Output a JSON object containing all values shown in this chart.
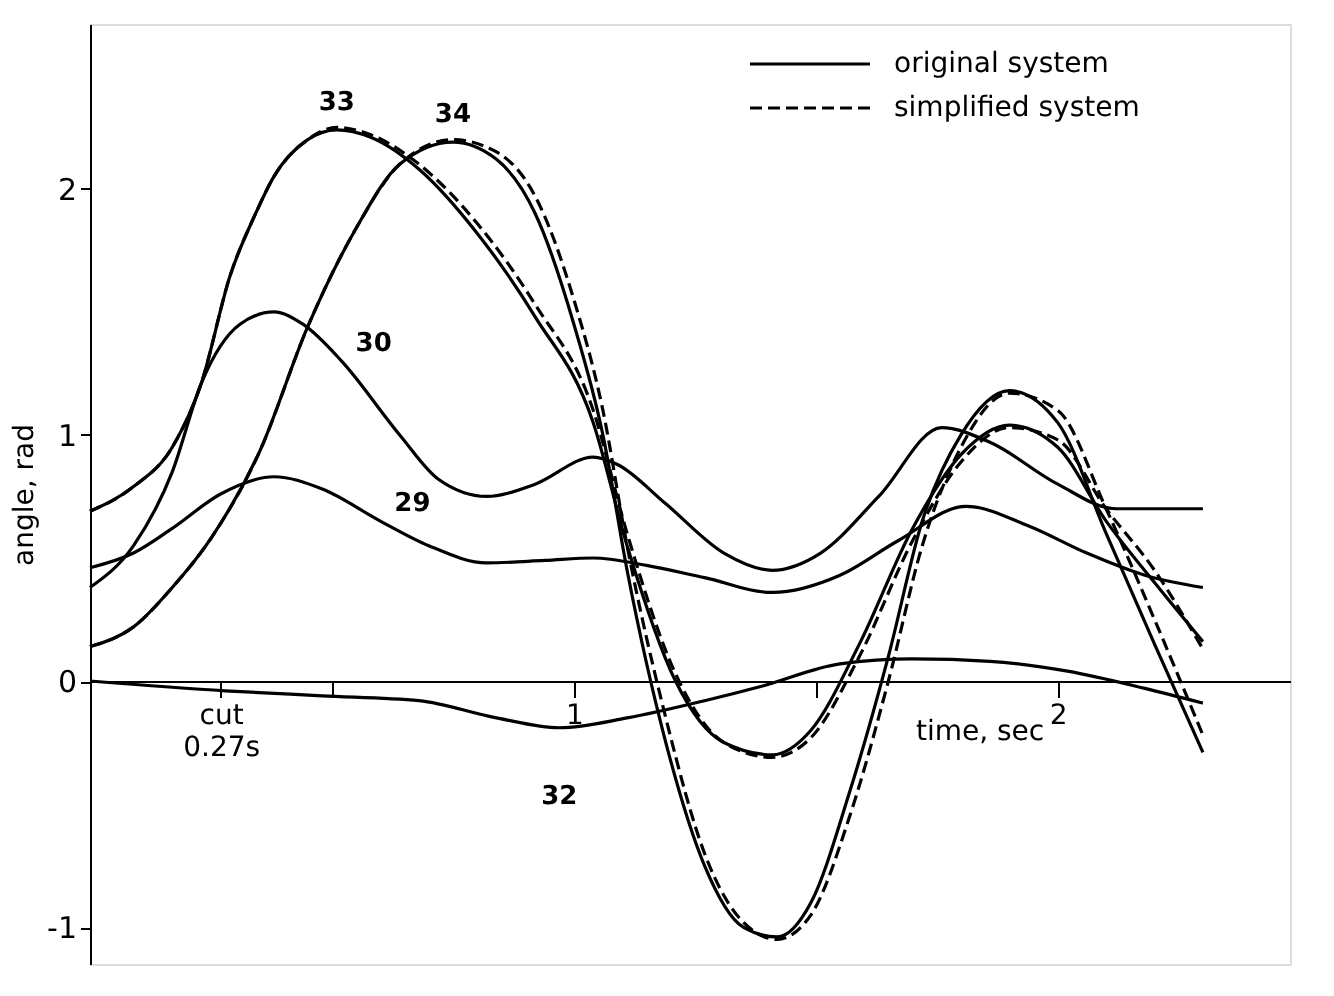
{
  "chart_data": {
    "type": "line",
    "xlabel": "time, sec",
    "ylabel": "angle, rad",
    "xlim": [
      0,
      2.48
    ],
    "ylim": [
      -1.15,
      2.67
    ],
    "xticks": [
      {
        "value": 0.27,
        "label": "cut 0.27s"
      },
      {
        "value": 0.5,
        "label": null
      },
      1,
      {
        "value": 1.5,
        "label": null
      },
      2
    ],
    "yticks": [
      -1,
      0,
      1,
      2
    ],
    "grid": false,
    "legend": "top right",
    "marker": "none",
    "series": [
      {
        "name": "original system",
        "color": "#000000",
        "line_style": "solid",
        "x": [
          0,
          0.09,
          0.17,
          0.23,
          0.29,
          0.34,
          0.38,
          0.45,
          0.51,
          0.58,
          0.68,
          0.8,
          0.92,
          1.04,
          1.11,
          1.21,
          1.31,
          1.41,
          1.49,
          1.59,
          1.7,
          1.8,
          1.9,
          2.0,
          2.1,
          2.2,
          2.3
        ],
        "values": [
          0.69,
          0.79,
          0.95,
          1.21,
          1.65,
          1.89,
          2.05,
          2.2,
          2.24,
          2.21,
          2.08,
          1.82,
          1.48,
          1.05,
          0.55,
          0.0,
          -0.25,
          -0.3,
          -0.2,
          0.15,
          0.62,
          0.92,
          1.04,
          0.95,
          0.65,
          0.4,
          0.16
        ]
      },
      {
        "name": "simplified system",
        "color": "#000000",
        "line_style": "dashed",
        "x": [
          0,
          0.09,
          0.17,
          0.23,
          0.29,
          0.34,
          0.38,
          0.45,
          0.51,
          0.58,
          0.68,
          0.8,
          0.92,
          1.04,
          1.11,
          1.21,
          1.31,
          1.41,
          1.49,
          1.59,
          1.7,
          1.8,
          1.9,
          2.0,
          2.1,
          2.2,
          2.3
        ],
        "values": [
          0.69,
          0.79,
          0.95,
          1.21,
          1.65,
          1.89,
          2.05,
          2.2,
          2.25,
          2.22,
          2.1,
          1.86,
          1.53,
          1.1,
          0.6,
          0.03,
          -0.25,
          -0.31,
          -0.23,
          0.1,
          0.57,
          0.89,
          1.03,
          0.98,
          0.7,
          0.45,
          0.13
        ]
      },
      {
        "color": "#000000",
        "line_style": "solid",
        "x": [
          0,
          0.09,
          0.17,
          0.25,
          0.35,
          0.45,
          0.55,
          0.64,
          0.75,
          0.84,
          0.92,
          1.0,
          1.06,
          1.11,
          1.19,
          1.27,
          1.35,
          1.42,
          1.49,
          1.57,
          1.65,
          1.72,
          1.8,
          1.9,
          2.0,
          2.1,
          2.2,
          2.3
        ],
        "values": [
          0.14,
          0.22,
          0.38,
          0.58,
          0.93,
          1.44,
          1.84,
          2.1,
          2.19,
          2.12,
          1.9,
          1.45,
          1.0,
          0.45,
          -0.25,
          -0.75,
          -1.0,
          -1.04,
          -0.9,
          -0.45,
          0.1,
          0.65,
          1.0,
          1.18,
          1.05,
          0.6,
          0.15,
          -0.29
        ]
      },
      {
        "color": "#000000",
        "line_style": "dashed",
        "x": [
          0,
          0.09,
          0.17,
          0.25,
          0.35,
          0.45,
          0.55,
          0.64,
          0.75,
          0.84,
          0.92,
          1.0,
          1.06,
          1.11,
          1.19,
          1.27,
          1.35,
          1.42,
          1.49,
          1.57,
          1.65,
          1.72,
          1.8,
          1.9,
          2.0,
          2.1,
          2.2,
          2.3
        ],
        "values": [
          0.14,
          0.22,
          0.38,
          0.58,
          0.93,
          1.44,
          1.84,
          2.1,
          2.2,
          2.15,
          1.97,
          1.55,
          1.1,
          0.55,
          -0.15,
          -0.7,
          -0.98,
          -1.05,
          -0.95,
          -0.55,
          0.0,
          0.55,
          0.95,
          1.17,
          1.1,
          0.7,
          0.25,
          -0.22
        ]
      },
      {
        "color": "#000000",
        "line_style": "solid",
        "x": [
          0,
          0.09,
          0.17,
          0.23,
          0.31,
          0.38,
          0.44,
          0.52,
          0.64,
          0.72,
          0.82,
          0.92,
          1.04,
          1.09,
          1.19,
          1.31,
          1.41,
          1.51,
          1.63,
          1.76,
          1.86,
          2.0,
          2.12,
          2.3
        ],
        "values": [
          0.38,
          0.55,
          0.85,
          1.21,
          1.45,
          1.5,
          1.45,
          1.3,
          1.0,
          0.82,
          0.75,
          0.8,
          0.91,
          0.88,
          0.72,
          0.52,
          0.45,
          0.52,
          0.75,
          1.03,
          0.97,
          0.8,
          0.7,
          0.7
        ]
      },
      {
        "color": "#000000",
        "line_style": "solid",
        "x": [
          0,
          0.09,
          0.17,
          0.27,
          0.38,
          0.48,
          0.6,
          0.7,
          0.82,
          0.94,
          1.04,
          1.15,
          1.27,
          1.41,
          1.55,
          1.67,
          1.81,
          1.94,
          2.06,
          2.18,
          2.3
        ],
        "values": [
          0.46,
          0.52,
          0.62,
          0.76,
          0.83,
          0.78,
          0.65,
          0.55,
          0.48,
          0.49,
          0.5,
          0.47,
          0.42,
          0.36,
          0.43,
          0.57,
          0.71,
          0.63,
          0.52,
          0.43,
          0.38
        ]
      },
      {
        "color": "#000000",
        "line_style": "solid",
        "x": [
          0,
          0.28,
          0.48,
          0.68,
          0.84,
          0.97,
          1.11,
          1.27,
          1.39,
          1.55,
          1.7,
          1.86,
          2.02,
          2.18,
          2.3
        ],
        "values": [
          0,
          -0.04,
          -0.06,
          -0.08,
          -0.15,
          -0.19,
          -0.15,
          -0.08,
          -0.02,
          0.07,
          0.09,
          0.08,
          0.04,
          -0.03,
          -0.09
        ]
      }
    ],
    "annotations": [
      "33",
      "34",
      "30",
      "29",
      "32"
    ]
  }
}
